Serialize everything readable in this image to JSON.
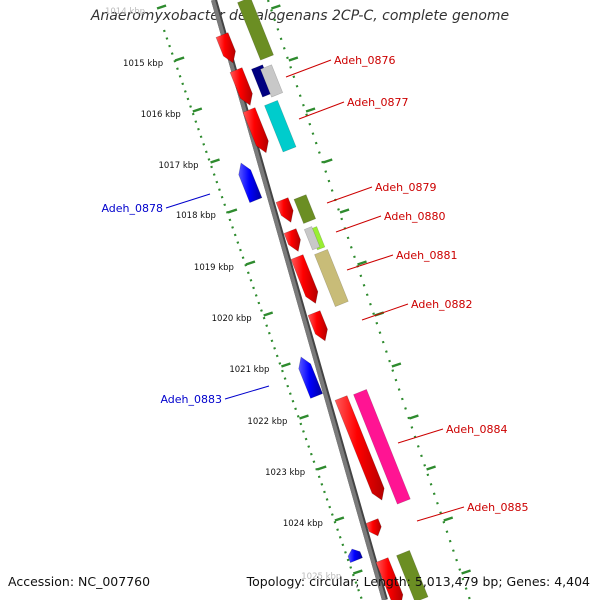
{
  "title": "Anaeromyxobacter dehalogenans 2CP-C, complete genome",
  "footer": {
    "accession": "Accession: NC_007760",
    "summary": "Topology: circular; Length: 5,013,479 bp; Genes: 4,404"
  },
  "scale": {
    "labels": [
      "1014 kbp",
      "1015 kbp",
      "1016 kbp",
      "1017 kbp",
      "1018 kbp",
      "1019 kbp",
      "1020 kbp",
      "1021 kbp",
      "1022 kbp",
      "1023 kbp",
      "1024 kbp",
      "1025 kbp"
    ],
    "color": "#2e8b2e"
  },
  "genes_forward": [
    {
      "label": "Adeh_0876",
      "color": "#cc0000"
    },
    {
      "label": "Adeh_0877",
      "color": "#cc0000"
    },
    {
      "label": "Adeh_0879",
      "color": "#cc0000"
    },
    {
      "label": "Adeh_0880",
      "color": "#cc0000"
    },
    {
      "label": "Adeh_0881",
      "color": "#cc0000"
    },
    {
      "label": "Adeh_0882",
      "color": "#cc0000"
    },
    {
      "label": "Adeh_0884",
      "color": "#cc0000"
    },
    {
      "label": "Adeh_0885",
      "color": "#cc0000"
    }
  ],
  "genes_reverse": [
    {
      "label": "Adeh_0878",
      "color": "#0000cc"
    },
    {
      "label": "Adeh_0883",
      "color": "#0000cc"
    }
  ],
  "colors": {
    "backbone": "#7a7a7a",
    "forward_cds": "#ff0000",
    "reverse_cds": "#0000ff",
    "cog_olive": "#6b8e23",
    "cog_navy": "#000080",
    "cog_gray": "#c8c8c8",
    "cog_cyan": "#00cccc",
    "cog_lime": "#99ee33",
    "cog_khaki": "#c8bc78",
    "cog_pink": "#ff1493"
  }
}
